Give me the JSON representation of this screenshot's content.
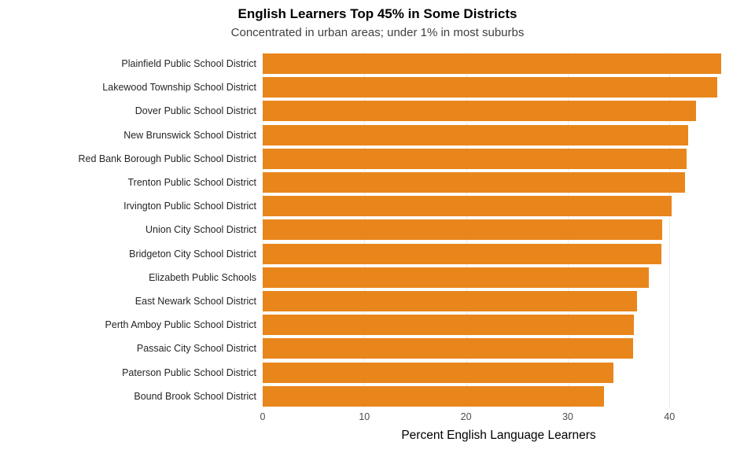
{
  "header": {
    "title": "English Learners Top 45% in Some Districts",
    "subtitle": "Concentrated in urban areas; under 1% in most suburbs"
  },
  "chart_data": {
    "type": "bar",
    "orientation": "horizontal",
    "title": "English Learners Top 45% in Some Districts",
    "subtitle": "Concentrated in urban areas; under 1% in most suburbs",
    "xlabel": "Percent English Language Learners",
    "ylabel": "",
    "categories": [
      "Plainfield Public School District",
      "Lakewood Township School District",
      "Dover Public School District",
      "New Brunswick School District",
      "Red Bank Borough Public School District",
      "Trenton Public School District",
      "Irvington Public School District",
      "Union City School District",
      "Bridgeton City School District",
      "Elizabeth Public Schools",
      "East Newark School District",
      "Perth Amboy Public School District",
      "Passaic City School District",
      "Paterson Public School District",
      "Bound Brook School District"
    ],
    "values": [
      45.1,
      44.7,
      42.6,
      41.8,
      41.7,
      41.5,
      40.2,
      39.3,
      39.2,
      38.0,
      36.8,
      36.5,
      36.4,
      34.5,
      33.6
    ],
    "xlim": [
      0,
      46.4
    ],
    "xticks": [
      0,
      10,
      20,
      30,
      40
    ],
    "bar_color": "#e8861c",
    "grid": true,
    "gridline_color": "#ebebeb",
    "legend": "none"
  }
}
